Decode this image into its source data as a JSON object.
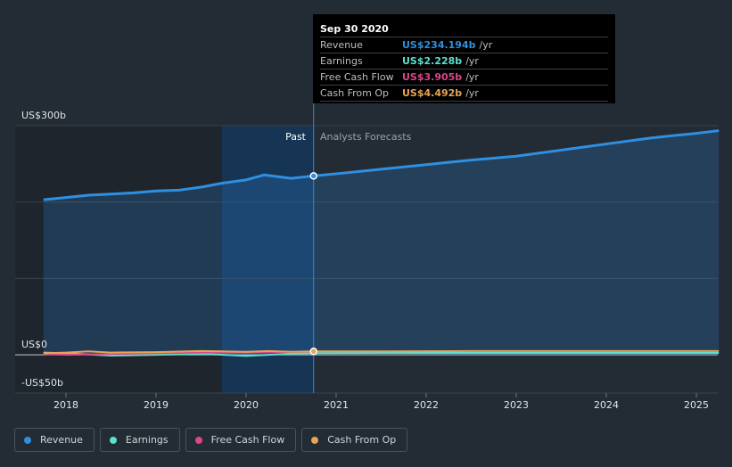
{
  "chart_data": {
    "type": "line",
    "y_axis_labels": [
      "US$300b",
      "US$0",
      "-US$50b"
    ],
    "ylim": [
      -50,
      300
    ],
    "x_ticks": [
      "2018",
      "2019",
      "2020",
      "2021",
      "2022",
      "2023",
      "2024",
      "2025"
    ],
    "regions": {
      "past": "Past",
      "forecast": "Analysts Forecasts"
    },
    "series": [
      {
        "name": "Revenue",
        "color": "#2f8fe0",
        "points": [
          [
            2017.75,
            203
          ],
          [
            2018.0,
            206
          ],
          [
            2018.25,
            209
          ],
          [
            2018.5,
            210.5
          ],
          [
            2018.75,
            212
          ],
          [
            2019.0,
            214.5
          ],
          [
            2019.25,
            215.5
          ],
          [
            2019.5,
            219.5
          ],
          [
            2019.75,
            225
          ],
          [
            2020.0,
            229
          ],
          [
            2020.2,
            235.5
          ],
          [
            2020.5,
            231
          ],
          [
            2020.75,
            234.194
          ]
        ],
        "forecast": [
          [
            2020.75,
            234.194
          ],
          [
            2021.0,
            237
          ],
          [
            2021.5,
            243
          ],
          [
            2022.0,
            249
          ],
          [
            2022.5,
            255
          ],
          [
            2023.0,
            260
          ],
          [
            2023.5,
            268
          ],
          [
            2024.0,
            276
          ],
          [
            2024.5,
            284
          ],
          [
            2025.0,
            290
          ],
          [
            2025.25,
            293.5
          ]
        ]
      },
      {
        "name": "Earnings",
        "color": "#5ae0cc",
        "points": [
          [
            2017.75,
            3
          ],
          [
            2018.0,
            2
          ],
          [
            2018.5,
            -1
          ],
          [
            2019.0,
            0
          ],
          [
            2019.5,
            1.5
          ],
          [
            2019.75,
            0
          ],
          [
            2020.0,
            -1.5
          ],
          [
            2020.25,
            0
          ],
          [
            2020.5,
            1.5
          ],
          [
            2020.75,
            2.228
          ]
        ],
        "forecast": [
          [
            2020.75,
            2.228
          ],
          [
            2021.5,
            2.5
          ],
          [
            2022.5,
            2.5
          ],
          [
            2023.5,
            2.5
          ],
          [
            2024.5,
            2.5
          ],
          [
            2025.25,
            2.5
          ]
        ]
      },
      {
        "name": "Free Cash Flow",
        "color": "#d9488a",
        "points": [
          [
            2017.75,
            1
          ],
          [
            2018.0,
            0
          ],
          [
            2018.5,
            1
          ],
          [
            2019.0,
            2
          ],
          [
            2019.5,
            3
          ],
          [
            2020.0,
            3
          ],
          [
            2020.5,
            4
          ],
          [
            2020.75,
            3.905
          ]
        ],
        "forecast": []
      },
      {
        "name": "Cash From Op",
        "color": "#e8a456",
        "points": [
          [
            2017.75,
            2
          ],
          [
            2018.0,
            3
          ],
          [
            2018.25,
            4.5
          ],
          [
            2018.5,
            3
          ],
          [
            2019.0,
            3.5
          ],
          [
            2019.5,
            5
          ],
          [
            2019.75,
            4.5
          ],
          [
            2020.0,
            4
          ],
          [
            2020.25,
            5
          ],
          [
            2020.5,
            4
          ],
          [
            2020.75,
            4.492
          ]
        ],
        "forecast": [
          [
            2020.75,
            4.492
          ],
          [
            2021.5,
            4.5
          ],
          [
            2022.5,
            5
          ],
          [
            2023.5,
            5
          ],
          [
            2024.5,
            5
          ],
          [
            2025.25,
            5
          ]
        ]
      }
    ]
  },
  "tooltip": {
    "date": "Sep 30 2020",
    "rows": [
      {
        "name": "Revenue",
        "value": "US$234.194b",
        "unit": "/yr",
        "color": "#2f8fe0"
      },
      {
        "name": "Earnings",
        "value": "US$2.228b",
        "unit": "/yr",
        "color": "#5ae0cc"
      },
      {
        "name": "Free Cash Flow",
        "value": "US$3.905b",
        "unit": "/yr",
        "color": "#d9488a"
      },
      {
        "name": "Cash From Op",
        "value": "US$4.492b",
        "unit": "/yr",
        "color": "#e8a456"
      }
    ]
  },
  "legend": [
    {
      "label": "Revenue",
      "color": "#2f8fe0"
    },
    {
      "label": "Earnings",
      "color": "#5ae0cc"
    },
    {
      "label": "Free Cash Flow",
      "color": "#d9488a"
    },
    {
      "label": "Cash From Op",
      "color": "#e8a456"
    }
  ]
}
